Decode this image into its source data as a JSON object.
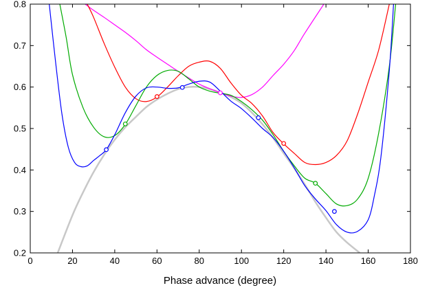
{
  "chart_data": {
    "type": "line",
    "title": "",
    "xlabel": "Phase advance (degree)",
    "ylabel": "",
    "xlim": [
      0,
      180
    ],
    "ylim": [
      0.2,
      0.8
    ],
    "xticks": [
      0,
      20,
      40,
      60,
      80,
      100,
      120,
      140,
      160,
      180
    ],
    "yticks": [
      0.2,
      0.3,
      0.4,
      0.5,
      0.6,
      0.7,
      0.8
    ],
    "xtick_labels": [
      "0",
      "20",
      "40",
      "60",
      "80",
      "100",
      "120",
      "140",
      "160",
      "180"
    ],
    "ytick_labels": [
      "0.2",
      "0.3",
      "0.4",
      "0.5",
      "0.6",
      "0.7",
      "0.8"
    ],
    "grid": false,
    "legend": "none",
    "series": [
      {
        "color": "#c8c8c8",
        "width": 2.5,
        "x": [
          13,
          20,
          25,
          30,
          35,
          40,
          45,
          50,
          55,
          60,
          65,
          70,
          75,
          80,
          85,
          90,
          95,
          100,
          105,
          110,
          115,
          120,
          125,
          130,
          135,
          140,
          145,
          150,
          156
        ],
        "y": [
          0.2,
          0.291,
          0.346,
          0.395,
          0.437,
          0.473,
          0.503,
          0.528,
          0.552,
          0.57,
          0.584,
          0.595,
          0.6,
          0.6,
          0.595,
          0.587,
          0.576,
          0.561,
          0.538,
          0.51,
          0.477,
          0.44,
          0.404,
          0.365,
          0.323,
          0.285,
          0.25,
          0.225,
          0.2
        ],
        "markers_x": [],
        "markers_y": []
      },
      {
        "color": "#ff00ff",
        "width": 1.2,
        "x": [
          26,
          30,
          35,
          40,
          45,
          50,
          55,
          60,
          65,
          70,
          75,
          80,
          85,
          90,
          95,
          100,
          105,
          110,
          115,
          120,
          125,
          130,
          139
        ],
        "y": [
          0.8,
          0.785,
          0.768,
          0.75,
          0.732,
          0.712,
          0.69,
          0.672,
          0.655,
          0.638,
          0.622,
          0.607,
          0.596,
          0.586,
          0.578,
          0.575,
          0.582,
          0.6,
          0.628,
          0.655,
          0.688,
          0.73,
          0.8
        ],
        "markers_x": [
          90
        ],
        "markers_y": [
          0.586
        ]
      },
      {
        "color": "#ff0000",
        "width": 1.2,
        "x": [
          27,
          30,
          35,
          40,
          45,
          50,
          55,
          60,
          65,
          70,
          75,
          80,
          85,
          90,
          95,
          100,
          105,
          110,
          115,
          120,
          125,
          130,
          135,
          140,
          145,
          150,
          155,
          160,
          165,
          170
        ],
        "y": [
          0.8,
          0.768,
          0.705,
          0.648,
          0.6,
          0.572,
          0.565,
          0.576,
          0.6,
          0.627,
          0.65,
          0.66,
          0.662,
          0.645,
          0.61,
          0.58,
          0.56,
          0.53,
          0.49,
          0.463,
          0.44,
          0.418,
          0.413,
          0.418,
          0.435,
          0.47,
          0.535,
          0.612,
          0.69,
          0.8
        ],
        "markers_x": [
          60,
          120
        ],
        "markers_y": [
          0.577,
          0.464
        ]
      },
      {
        "color": "#00aa00",
        "width": 1.2,
        "x": [
          14,
          17,
          20,
          25,
          30,
          35,
          40,
          45,
          50,
          55,
          60,
          65,
          70,
          75,
          80,
          85,
          90,
          95,
          100,
          105,
          110,
          115,
          120,
          125,
          130,
          135,
          140,
          145,
          150,
          155,
          160,
          165,
          170,
          173
        ],
        "y": [
          0.8,
          0.72,
          0.63,
          0.55,
          0.503,
          0.48,
          0.483,
          0.51,
          0.555,
          0.6,
          0.628,
          0.64,
          0.638,
          0.62,
          0.6,
          0.59,
          0.585,
          0.58,
          0.565,
          0.545,
          0.52,
          0.485,
          0.445,
          0.41,
          0.38,
          0.368,
          0.343,
          0.318,
          0.314,
          0.33,
          0.38,
          0.49,
          0.65,
          0.8
        ],
        "markers_x": [
          45,
          135
        ],
        "markers_y": [
          0.511,
          0.368
        ]
      },
      {
        "color": "#0000ff",
        "width": 1.2,
        "x": [
          9,
          12,
          15,
          18,
          21,
          24,
          27,
          30,
          33,
          36,
          40,
          45,
          50,
          55,
          60,
          65,
          70,
          75,
          80,
          85,
          90,
          95,
          100,
          105,
          110,
          115,
          120,
          125,
          130,
          135,
          140,
          145,
          150,
          155,
          160,
          163,
          166,
          170,
          172
        ],
        "y": [
          0.8,
          0.66,
          0.535,
          0.455,
          0.418,
          0.408,
          0.41,
          0.423,
          0.435,
          0.449,
          0.485,
          0.538,
          0.578,
          0.598,
          0.6,
          0.597,
          0.598,
          0.607,
          0.614,
          0.612,
          0.59,
          0.566,
          0.548,
          0.525,
          0.5,
          0.478,
          0.445,
          0.405,
          0.362,
          0.33,
          0.302,
          0.268,
          0.25,
          0.252,
          0.28,
          0.34,
          0.43,
          0.64,
          0.8
        ],
        "markers_x": [
          36,
          72,
          108,
          144
        ],
        "markers_y": [
          0.449,
          0.599,
          0.526,
          0.3
        ]
      }
    ]
  }
}
